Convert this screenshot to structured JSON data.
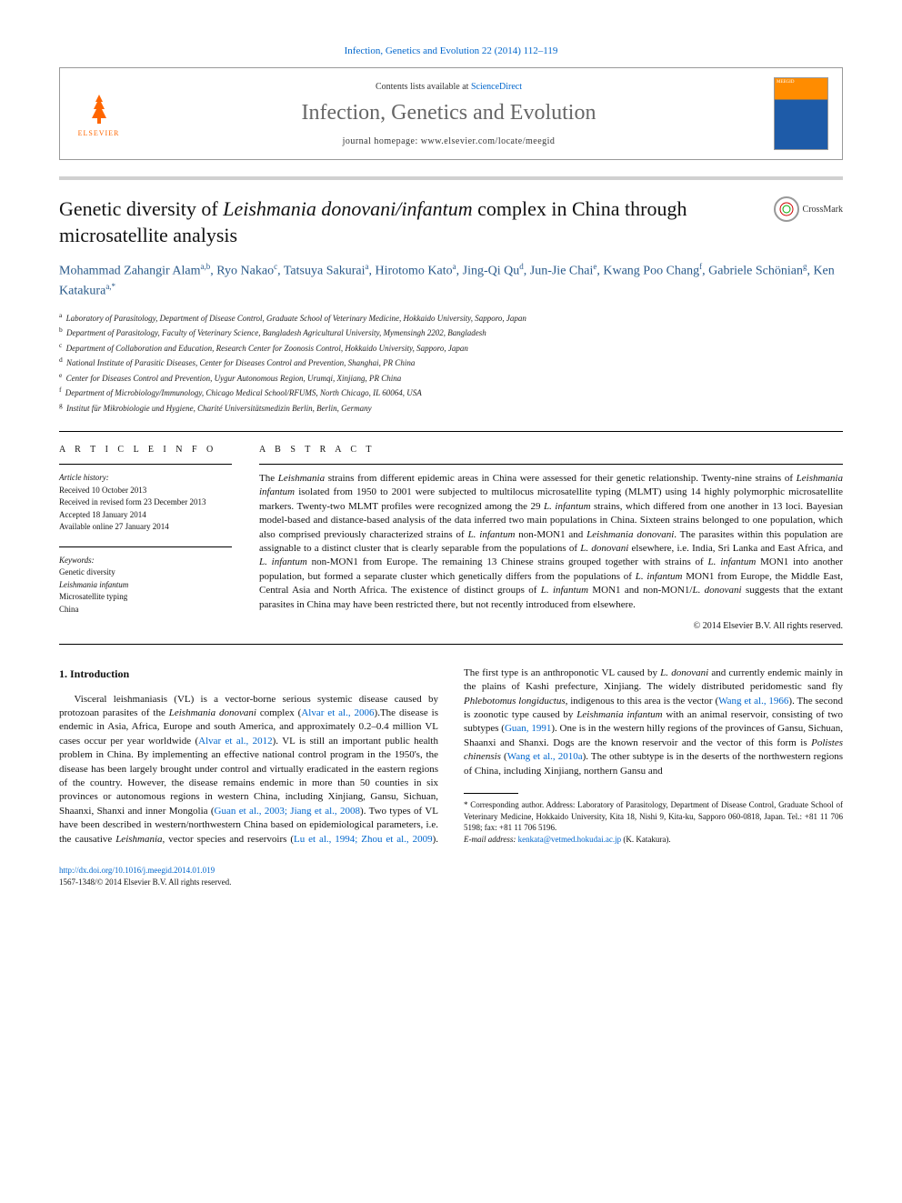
{
  "header": {
    "citation": "Infection, Genetics and Evolution 22 (2014) 112–119",
    "contents_prefix": "Contents lists available at ",
    "contents_link": "ScienceDirect",
    "journal_name": "Infection, Genetics and Evolution",
    "homepage_prefix": "journal homepage: ",
    "homepage_url": "www.elsevier.com/locate/meegid",
    "elsevier": "ELSEVIER",
    "cover_label": "MEEGID"
  },
  "crossmark": "CrossMark",
  "title_parts": [
    "Genetic diversity of ",
    "Leishmania donovani/infantum",
    " complex in China through microsatellite analysis"
  ],
  "authors": [
    {
      "name": "Mohammad Zahangir Alam",
      "aff": "a,b"
    },
    {
      "name": "Ryo Nakao",
      "aff": "c"
    },
    {
      "name": "Tatsuya Sakurai",
      "aff": "a"
    },
    {
      "name": "Hirotomo Kato",
      "aff": "a"
    },
    {
      "name": "Jing-Qi Qu",
      "aff": "d"
    },
    {
      "name": "Jun-Jie Chai",
      "aff": "e"
    },
    {
      "name": "Kwang Poo Chang",
      "aff": "f"
    },
    {
      "name": "Gabriele Schönian",
      "aff": "g"
    },
    {
      "name": "Ken Katakura",
      "aff": "a,*"
    }
  ],
  "affiliations": [
    {
      "sup": "a",
      "text": "Laboratory of Parasitology, Department of Disease Control, Graduate School of Veterinary Medicine, Hokkaido University, Sapporo, Japan"
    },
    {
      "sup": "b",
      "text": "Department of Parasitology, Faculty of Veterinary Science, Bangladesh Agricultural University, Mymensingh 2202, Bangladesh"
    },
    {
      "sup": "c",
      "text": "Department of Collaboration and Education, Research Center for Zoonosis Control, Hokkaido University, Sapporo, Japan"
    },
    {
      "sup": "d",
      "text": "National Institute of Parasitic Diseases, Center for Diseases Control and Prevention, Shanghai, PR China"
    },
    {
      "sup": "e",
      "text": "Center for Diseases Control and Prevention, Uygur Autonomous Region, Urumqi, Xinjiang, PR China"
    },
    {
      "sup": "f",
      "text": "Department of Microbiology/Immunology, Chicago Medical School/RFUMS, North Chicago, IL 60064, USA"
    },
    {
      "sup": "g",
      "text": "Institut für Mikrobiologie und Hygiene, Charité Universitätsmedizin Berlin, Berlin, Germany"
    }
  ],
  "article_info": {
    "heading": "A R T I C L E   I N F O",
    "history_label": "Article history:",
    "history": [
      "Received 10 October 2013",
      "Received in revised form 23 December 2013",
      "Accepted 18 January 2014",
      "Available online 27 January 2014"
    ],
    "keywords_label": "Keywords:",
    "keywords": [
      "Genetic diversity",
      "Leishmania infantum",
      "Microsatellite typing",
      "China"
    ]
  },
  "abstract": {
    "heading": "A B S T R A C T",
    "text_parts": [
      {
        "t": "The ",
        "i": false
      },
      {
        "t": "Leishmania",
        "i": true
      },
      {
        "t": " strains from different epidemic areas in China were assessed for their genetic relationship. Twenty-nine strains of ",
        "i": false
      },
      {
        "t": "Leishmania infantum",
        "i": true
      },
      {
        "t": " isolated from 1950 to 2001 were subjected to multilocus microsatellite typing (MLMT) using 14 highly polymorphic microsatellite markers. Twenty-two MLMT profiles were recognized among the 29 ",
        "i": false
      },
      {
        "t": "L. infantum",
        "i": true
      },
      {
        "t": " strains, which differed from one another in 13 loci. Bayesian model-based and distance-based analysis of the data inferred two main populations in China. Sixteen strains belonged to one population, which also comprised previously characterized strains of ",
        "i": false
      },
      {
        "t": "L. infantum",
        "i": true
      },
      {
        "t": " non-MON1 and ",
        "i": false
      },
      {
        "t": "Leishmania donovani",
        "i": true
      },
      {
        "t": ". The parasites within this population are assignable to a distinct cluster that is clearly separable from the populations of ",
        "i": false
      },
      {
        "t": "L. donovani",
        "i": true
      },
      {
        "t": " elsewhere, i.e. India, Sri Lanka and East Africa, and ",
        "i": false
      },
      {
        "t": "L. infantum",
        "i": true
      },
      {
        "t": " non-MON1 from Europe. The remaining 13 Chinese strains grouped together with strains of ",
        "i": false
      },
      {
        "t": "L. infantum",
        "i": true
      },
      {
        "t": " MON1 into another population, but formed a separate cluster which genetically differs from the populations of ",
        "i": false
      },
      {
        "t": "L. infantum",
        "i": true
      },
      {
        "t": " MON1 from Europe, the Middle East, Central Asia and North Africa. The existence of distinct groups of ",
        "i": false
      },
      {
        "t": "L. infantum",
        "i": true
      },
      {
        "t": " MON1 and non-MON1/",
        "i": false
      },
      {
        "t": "L. donovani",
        "i": true
      },
      {
        "t": " suggests that the extant parasites in China may have been restricted there, but not recently introduced from elsewhere.",
        "i": false
      }
    ],
    "copyright": "© 2014 Elsevier B.V. All rights reserved."
  },
  "section": {
    "heading": "1. Introduction",
    "col1_parts": [
      {
        "t": "Visceral leishmaniasis (VL) is a vector-borne serious systemic disease caused by protozoan parasites of the ",
        "i": false
      },
      {
        "t": "Leishmania donovani",
        "i": true
      },
      {
        "t": " complex (",
        "i": false
      },
      {
        "t": "Alvar et al., 2006",
        "ref": true
      },
      {
        "t": ").The disease is endemic in Asia, Africa, Europe and south America, and approximately 0.2–0.4 million VL cases occur per year worldwide (",
        "i": false
      },
      {
        "t": "Alvar et al., 2012",
        "ref": true
      },
      {
        "t": "). VL is still an important public health problem in China. By implementing an effective national control program in the 1950's, the disease has been largely brought under control and virtually eradicated in the eastern regions of the country. However, the disease remains endemic in more than 50 counties in",
        "i": false
      }
    ],
    "col2_parts": [
      {
        "t": "six provinces or autonomous regions in western China, including Xinjiang, Gansu, Sichuan, Shaanxi, Shanxi and inner Mongolia (",
        "i": false
      },
      {
        "t": "Guan et al., 2003; Jiang et al., 2008",
        "ref": true
      },
      {
        "t": "). Two types of VL have been described in western/northwestern China based on epidemiological parameters, i.e. the causative ",
        "i": false
      },
      {
        "t": "Leishmania",
        "i": true
      },
      {
        "t": ", vector species and reservoirs (",
        "i": false
      },
      {
        "t": "Lu et al., 1994; Zhou et al., 2009",
        "ref": true
      },
      {
        "t": "). The first type is an anthroponotic VL caused by ",
        "i": false
      },
      {
        "t": "L. donovani",
        "i": true
      },
      {
        "t": " and currently endemic mainly in the plains of Kashi prefecture, Xinjiang. The widely distributed peridomestic sand fly ",
        "i": false
      },
      {
        "t": "Phlebotomus longiductus",
        "i": true
      },
      {
        "t": ", indigenous to this area is the vector (",
        "i": false
      },
      {
        "t": "Wang et al., 1966",
        "ref": true
      },
      {
        "t": "). The second is zoonotic type caused by ",
        "i": false
      },
      {
        "t": "Leishmania infantum",
        "i": true
      },
      {
        "t": " with an animal reservoir, consisting of two subtypes (",
        "i": false
      },
      {
        "t": "Guan, 1991",
        "ref": true
      },
      {
        "t": "). One is in the western hilly regions of the provinces of Gansu, Sichuan, Shaanxi and Shanxi. Dogs are the known reservoir and the vector of this form is ",
        "i": false
      },
      {
        "t": "Polistes chinensis",
        "i": true
      },
      {
        "t": " (",
        "i": false
      },
      {
        "t": "Wang et al., 2010a",
        "ref": true
      },
      {
        "t": "). The other subtype is in the deserts of the northwestern regions of China, including Xinjiang, northern Gansu and",
        "i": false
      }
    ]
  },
  "footnotes": {
    "corresponding": "* Corresponding author. Address: Laboratory of Parasitology, Department of Disease Control, Graduate School of Veterinary Medicine, Hokkaido University, Kita 18, Nishi 9, Kita-ku, Sapporo 060-0818, Japan. Tel.: +81 11 706 5198; fax: +81 11 706 5196.",
    "email_label": "E-mail address: ",
    "email": "kenkata@vetmed.hokudai.ac.jp",
    "email_suffix": " (K. Katakura)."
  },
  "footer": {
    "doi": "http://dx.doi.org/10.1016/j.meegid.2014.01.019",
    "issn": "1567-1348/© 2014 Elsevier B.V. All rights reserved."
  },
  "colors": {
    "link": "#0066cc",
    "elsevier_orange": "#ff6600",
    "journal_grey": "#666666",
    "author_blue": "#2a5a8a",
    "title_bar": "#d0d0d0"
  }
}
